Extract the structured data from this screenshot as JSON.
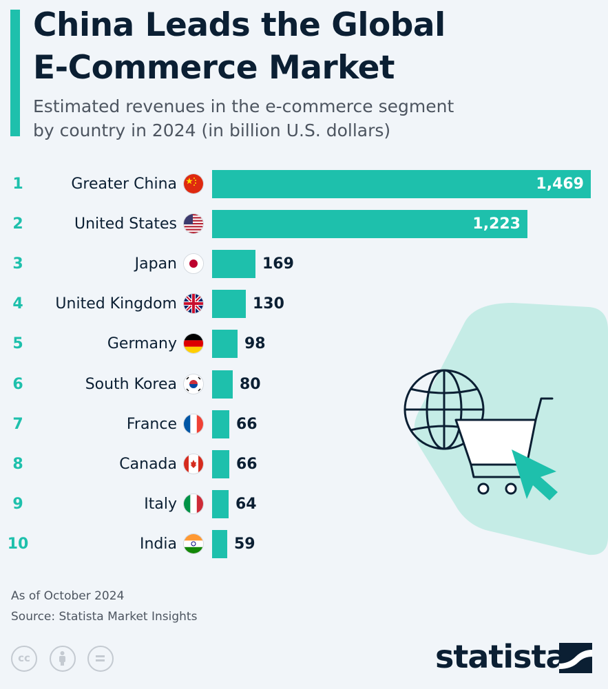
{
  "header": {
    "title_line1": "China Leads the Global",
    "title_line2": "E-Commerce Market",
    "subtitle_line1": "Estimated revenues in the e-commerce segment",
    "subtitle_line2": "by country in 2024 (in billion U.S. dollars)"
  },
  "chart_data": {
    "type": "bar",
    "orientation": "horizontal",
    "title": "China Leads the Global E-Commerce Market",
    "subtitle": "Estimated revenues in the e-commerce segment by country in 2024 (in billion U.S. dollars)",
    "categories": [
      "Greater China",
      "United States",
      "Japan",
      "United Kingdom",
      "Germany",
      "South Korea",
      "France",
      "Canada",
      "Italy",
      "India"
    ],
    "ranks": [
      "1",
      "2",
      "3",
      "4",
      "5",
      "6",
      "7",
      "8",
      "9",
      "10"
    ],
    "values": [
      1469,
      1223,
      169,
      130,
      98,
      80,
      66,
      66,
      64,
      59
    ],
    "value_labels": [
      "1,469",
      "1,223",
      "169",
      "130",
      "98",
      "80",
      "66",
      "66",
      "64",
      "59"
    ],
    "flag_icons": [
      "china-flag-icon",
      "usa-flag-icon",
      "japan-flag-icon",
      "uk-flag-icon",
      "germany-flag-icon",
      "south-korea-flag-icon",
      "france-flag-icon",
      "canada-flag-icon",
      "italy-flag-icon",
      "india-flag-icon"
    ],
    "xlim": [
      0,
      1469
    ],
    "grid": false,
    "bar_color": "#1ec0ac"
  },
  "footer": {
    "as_of": "As of October 2024",
    "source": "Source: Statista Market Insights",
    "cc_label": "cc",
    "logo": "statista",
    "license_icons": [
      "cc-icon",
      "attribution-icon",
      "no-derivatives-icon"
    ]
  },
  "illustration": {
    "icons": [
      "globe-icon",
      "shopping-cart-icon",
      "cursor-arrow-icon"
    ]
  },
  "colors": {
    "accent": "#1ec0ac",
    "dark": "#0b1f33",
    "background": "#f1f5f9",
    "blob": "#c5ece6"
  }
}
